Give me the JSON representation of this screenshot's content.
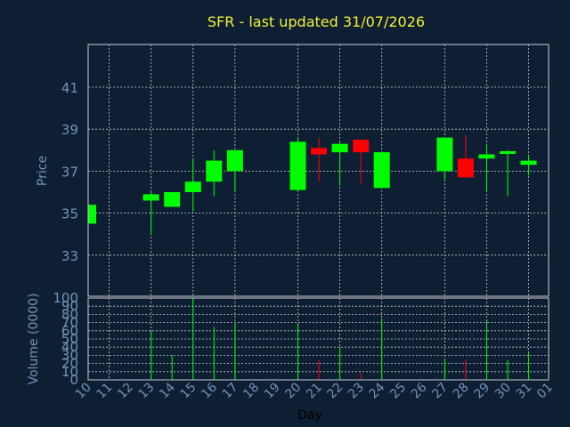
{
  "title": "SFR - last updated 31/07/2026",
  "colors": {
    "background": "#0f1f33",
    "title": "#f2f23a",
    "axis_text": "#6f93b8",
    "up": "#00ff00",
    "down": "#ff0000",
    "grid": "#c8ccd2"
  },
  "chart_data": [
    {
      "type": "candlestick",
      "ylabel": "Price",
      "ylim": [
        31,
        43
      ],
      "yticks": [
        33,
        35,
        37,
        39,
        41
      ],
      "grid": true,
      "candles": [
        {
          "day": "10",
          "open": 34.5,
          "high": 35.4,
          "low": 34.5,
          "close": 35.4
        },
        {
          "day": "13",
          "open": 35.6,
          "high": 36.0,
          "low": 34.0,
          "close": 35.9
        },
        {
          "day": "14",
          "open": 35.3,
          "high": 36.0,
          "low": 35.3,
          "close": 36.0
        },
        {
          "day": "15",
          "open": 36.0,
          "high": 37.6,
          "low": 35.1,
          "close": 36.5
        },
        {
          "day": "16",
          "open": 36.5,
          "high": 38.0,
          "low": 35.8,
          "close": 37.5
        },
        {
          "day": "17",
          "open": 37.0,
          "high": 38.0,
          "low": 36.0,
          "close": 38.0
        },
        {
          "day": "20",
          "open": 36.1,
          "high": 38.6,
          "low": 36.0,
          "close": 38.4
        },
        {
          "day": "21",
          "open": 38.1,
          "high": 38.6,
          "low": 36.5,
          "close": 37.8
        },
        {
          "day": "22",
          "open": 37.9,
          "high": 38.4,
          "low": 36.3,
          "close": 38.3
        },
        {
          "day": "23",
          "open": 38.5,
          "high": 38.5,
          "low": 36.4,
          "close": 37.9
        },
        {
          "day": "24",
          "open": 36.2,
          "high": 37.9,
          "low": 36.2,
          "close": 37.9
        },
        {
          "day": "27",
          "open": 37.0,
          "high": 38.6,
          "low": 36.5,
          "close": 38.6
        },
        {
          "day": "28",
          "open": 37.6,
          "high": 38.7,
          "low": 36.7,
          "close": 36.7
        },
        {
          "day": "29",
          "open": 37.6,
          "high": 38.3,
          "low": 36.0,
          "close": 37.8
        },
        {
          "day": "30",
          "open": 37.85,
          "high": 38.0,
          "low": 35.8,
          "close": 37.95
        },
        {
          "day": "31",
          "open": 37.3,
          "high": 37.8,
          "low": 36.8,
          "close": 37.5
        }
      ]
    },
    {
      "type": "bar",
      "ylabel": "Volume (0000)",
      "xlabel": "Day",
      "ylim": [
        0,
        100
      ],
      "yticks": [
        0,
        10,
        20,
        30,
        40,
        50,
        60,
        70,
        80,
        90,
        100
      ],
      "grid": true,
      "bars": [
        {
          "day": "10",
          "value": 0,
          "dir": "up"
        },
        {
          "day": "13",
          "value": 60,
          "dir": "up"
        },
        {
          "day": "14",
          "value": 30,
          "dir": "up"
        },
        {
          "day": "15",
          "value": 100,
          "dir": "up"
        },
        {
          "day": "16",
          "value": 65,
          "dir": "up"
        },
        {
          "day": "17",
          "value": 70,
          "dir": "up"
        },
        {
          "day": "20",
          "value": 68,
          "dir": "up"
        },
        {
          "day": "21",
          "value": 24,
          "dir": "down"
        },
        {
          "day": "22",
          "value": 40,
          "dir": "up"
        },
        {
          "day": "23",
          "value": 9,
          "dir": "down"
        },
        {
          "day": "24",
          "value": 75,
          "dir": "up"
        },
        {
          "day": "27",
          "value": 24,
          "dir": "up"
        },
        {
          "day": "28",
          "value": 24,
          "dir": "down"
        },
        {
          "day": "29",
          "value": 72,
          "dir": "up"
        },
        {
          "day": "30",
          "value": 24,
          "dir": "up"
        },
        {
          "day": "31",
          "value": 35,
          "dir": "up"
        }
      ]
    }
  ],
  "x_days": [
    "10",
    "11",
    "12",
    "13",
    "14",
    "15",
    "16",
    "17",
    "18",
    "19",
    "20",
    "21",
    "22",
    "23",
    "24",
    "25",
    "26",
    "27",
    "28",
    "29",
    "30",
    "31",
    "01"
  ],
  "x_gridlines": [
    "11",
    "13",
    "15",
    "17",
    "20",
    "22",
    "24",
    "27",
    "29",
    "31"
  ]
}
